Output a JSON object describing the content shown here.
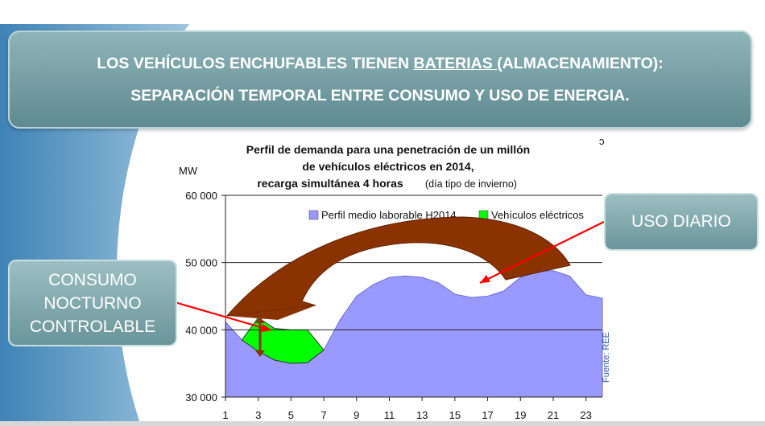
{
  "slide": {
    "title_line1_pre": "LOS VEHÍCULOS ENCHUFABLES TIENEN ",
    "title_line1_underlined": "BATERIAS ",
    "title_line1_post": "(ALMACENAMIENTO):",
    "title_line2": "SEPARACIÓN TEMPORAL ENTRE CONSUMO Y USO DE ENERGIA.",
    "callout_uso": "USO DIARIO",
    "callout_consumo_lines": [
      "CONSUMO",
      "NOCTURNO",
      "CONTROLABLE"
    ],
    "colors": {
      "banner": "#7aa2a7",
      "background_blue": "#5a93bd",
      "series_base": "#9999ff",
      "series_ev": "#00ff00",
      "arrow": "#8b3300",
      "pointer": "#ff0000"
    }
  },
  "chart_data": {
    "type": "area",
    "title_lines": [
      "Perfil de demanda para una penetración de un millón",
      "de vehículos eléctricos en 2014,",
      "recarga simultánea 4 horas"
    ],
    "title_note": "(día tipo de invierno)",
    "ylabel": "MW",
    "ylim": [
      30000,
      60000
    ],
    "yticks": [
      "30 000",
      "40 000",
      "50 000",
      "60 000"
    ],
    "ytick_values": [
      30000,
      40000,
      50000,
      60000
    ],
    "xlim": [
      1,
      24
    ],
    "xticks": [
      "1",
      "3",
      "5",
      "7",
      "9",
      "11",
      "13",
      "15",
      "17",
      "19",
      "21",
      "23"
    ],
    "xtick_values": [
      1,
      3,
      5,
      7,
      9,
      11,
      13,
      15,
      17,
      19,
      21,
      23
    ],
    "grid": true,
    "legend_position": "top-right",
    "source": "Fuente: REE",
    "x": [
      1,
      2,
      3,
      4,
      5,
      6,
      7,
      8,
      9,
      10,
      11,
      12,
      13,
      14,
      15,
      16,
      17,
      18,
      19,
      20,
      21,
      22,
      23,
      24
    ],
    "series": [
      {
        "name": "Perfil medio laborable H2014",
        "values": [
          41200,
          38500,
          36800,
          35500,
          35000,
          35100,
          37000,
          41500,
          45000,
          46700,
          47800,
          48000,
          47800,
          47000,
          45300,
          44800,
          45000,
          45800,
          47800,
          48700,
          48800,
          48000,
          45200,
          44700
        ]
      },
      {
        "name": "Vehículos eléctricos",
        "values": [
          null,
          38500,
          41800,
          40200,
          40000,
          40000,
          37000,
          null,
          null,
          null,
          null,
          null,
          null,
          null,
          null,
          null,
          null,
          null,
          null,
          null,
          null,
          null,
          null,
          null
        ]
      }
    ]
  }
}
